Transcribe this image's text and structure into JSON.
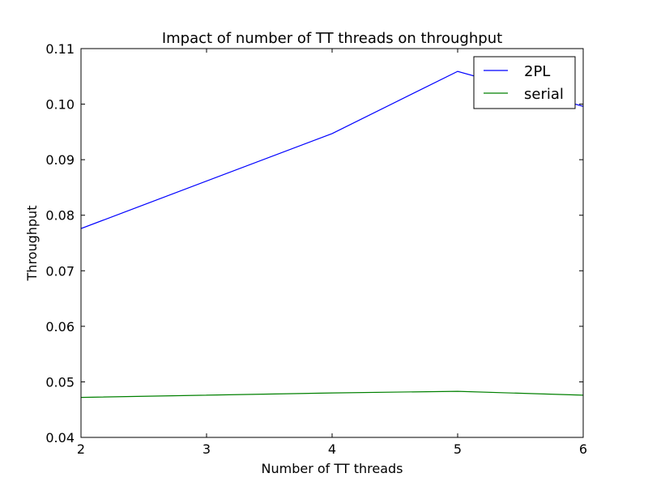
{
  "chart_data": {
    "type": "line",
    "title": "Impact of number of TT threads on throughput",
    "xlabel": "Number of TT threads",
    "ylabel": "Throughput",
    "xlim": [
      2,
      6
    ],
    "ylim": [
      0.04,
      0.11
    ],
    "x_ticks": [
      2,
      3,
      4,
      5,
      6
    ],
    "x_tick_labels": [
      "2",
      "3",
      "4",
      "5",
      "6"
    ],
    "y_ticks": [
      0.04,
      0.05,
      0.06,
      0.07,
      0.08,
      0.09,
      0.1,
      0.11
    ],
    "y_tick_labels": [
      "0.04",
      "0.05",
      "0.06",
      "0.07",
      "0.08",
      "0.09",
      "0.10",
      "0.11"
    ],
    "grid": false,
    "legend_position": "top-right",
    "x": [
      2,
      4,
      5,
      6
    ],
    "series": [
      {
        "name": "2PL",
        "color": "#0000ff",
        "values": [
          0.0776,
          0.0947,
          0.1059,
          0.0996
        ]
      },
      {
        "name": "serial",
        "color": "#008000",
        "values": [
          0.0472,
          0.048,
          0.0483,
          0.0476
        ]
      }
    ]
  }
}
